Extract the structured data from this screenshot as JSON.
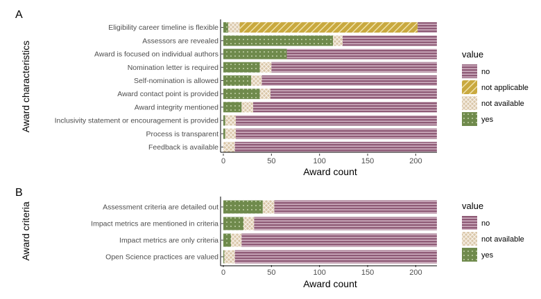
{
  "chart_data": [
    {
      "panel_label": "A",
      "type": "bar",
      "orientation": "horizontal",
      "stacked": true,
      "xlabel": "Award count",
      "ylabel": "Award characteristics",
      "xlim": [
        0,
        222
      ],
      "xticks": [
        0,
        50,
        100,
        150,
        200
      ],
      "legend_title": "value",
      "legend_position": "right",
      "categories": [
        "Eligibility career timeline is flexible",
        "Assessors are revealed",
        "Award is focused on individual authors",
        "Nomination letter is required",
        "Self-nomination is allowed",
        "Award contact point is provided",
        "Award integrity mentioned",
        "Inclusivity statement or encouragement is provided",
        "Process is transparent",
        "Feedback is available"
      ],
      "series": [
        {
          "name": "yes",
          "values": [
            5,
            114,
            66,
            38,
            29,
            38,
            19,
            2,
            2,
            0
          ]
        },
        {
          "name": "not available",
          "values": [
            12,
            10,
            0,
            12,
            11,
            11,
            12,
            11,
            11,
            12
          ]
        },
        {
          "name": "not applicable",
          "values": [
            185,
            0,
            0,
            0,
            0,
            0,
            0,
            0,
            0,
            0
          ]
        },
        {
          "name": "no",
          "values": [
            20,
            98,
            156,
            172,
            182,
            173,
            191,
            209,
            209,
            210
          ]
        }
      ],
      "legend": [
        "no",
        "not applicable",
        "not available",
        "yes"
      ]
    },
    {
      "panel_label": "B",
      "type": "bar",
      "orientation": "horizontal",
      "stacked": true,
      "xlabel": "Award count",
      "ylabel": "Award criteria",
      "xlim": [
        0,
        222
      ],
      "xticks": [
        0,
        50,
        100,
        150,
        200
      ],
      "legend_title": "value",
      "legend_position": "right",
      "categories": [
        "Assessment criteria are detailed out",
        "Impact metrics are mentioned in criteria",
        "Impact metrics are only criteria",
        "Open Science practices are valued"
      ],
      "series": [
        {
          "name": "yes",
          "values": [
            41,
            21,
            8,
            1
          ]
        },
        {
          "name": "not available",
          "values": [
            12,
            11,
            11,
            11
          ]
        },
        {
          "name": "no",
          "values": [
            169,
            190,
            203,
            210
          ]
        }
      ],
      "legend": [
        "no",
        "not available",
        "yes"
      ]
    }
  ],
  "colors": {
    "no": "#8e5a76",
    "not applicable": "#c9a93f",
    "not available": "#d9c6a8",
    "yes": "#6f8a4c"
  }
}
